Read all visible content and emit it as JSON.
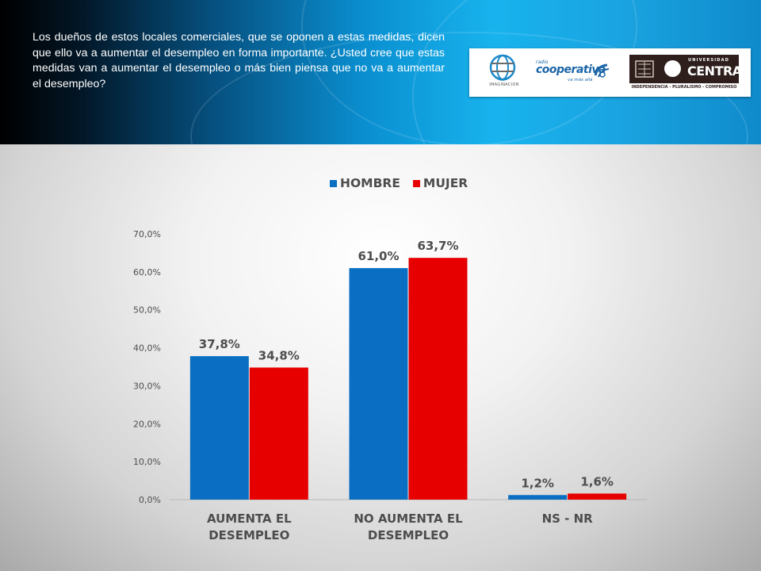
{
  "question": "Los dueños de estos locales comerciales, que se oponen a estas medidas, dicen que ello va a aumentar el desempleo en forma importante. ¿Usted cree que estas medidas van a aumentar el desempleo o más bien piensa que no va a aumentar el desempleo?",
  "logos": {
    "imaginacion": "IMAGINACION",
    "cooperativa_small": "radio",
    "cooperativa": "cooperativa",
    "cooperativa_tag": "va más allá",
    "universidad": "UNIVERSIDAD",
    "central": "CENTRAL",
    "motto": "INDEPENDENCIA - PLURALISMO - COMPROMISO"
  },
  "colors": {
    "hombre": "#0a6fc2",
    "mujer": "#e60000",
    "axis_text": "#4d4d4d"
  },
  "chart_data": {
    "type": "bar",
    "categories": [
      [
        "AUMENTA  EL",
        "DESEMPLEO"
      ],
      [
        "NO  AUMENTA  EL",
        "DESEMPLEO"
      ],
      [
        "NS - NR"
      ]
    ],
    "series": [
      {
        "name": "HOMBRE",
        "values": [
          37.8,
          61.0,
          1.2
        ],
        "labels": [
          "37,8%",
          "61,0%",
          "1,2%"
        ]
      },
      {
        "name": "MUJER",
        "values": [
          34.8,
          63.7,
          1.6
        ],
        "labels": [
          "34,8%",
          "63,7%",
          "1,6%"
        ]
      }
    ],
    "yticks": [
      "0,0%",
      "10,0%",
      "20,0%",
      "30,0%",
      "40,0%",
      "50,0%",
      "60,0%",
      "70,0%"
    ],
    "ylim": [
      0,
      70
    ],
    "grid": false,
    "legend": "top-center"
  }
}
